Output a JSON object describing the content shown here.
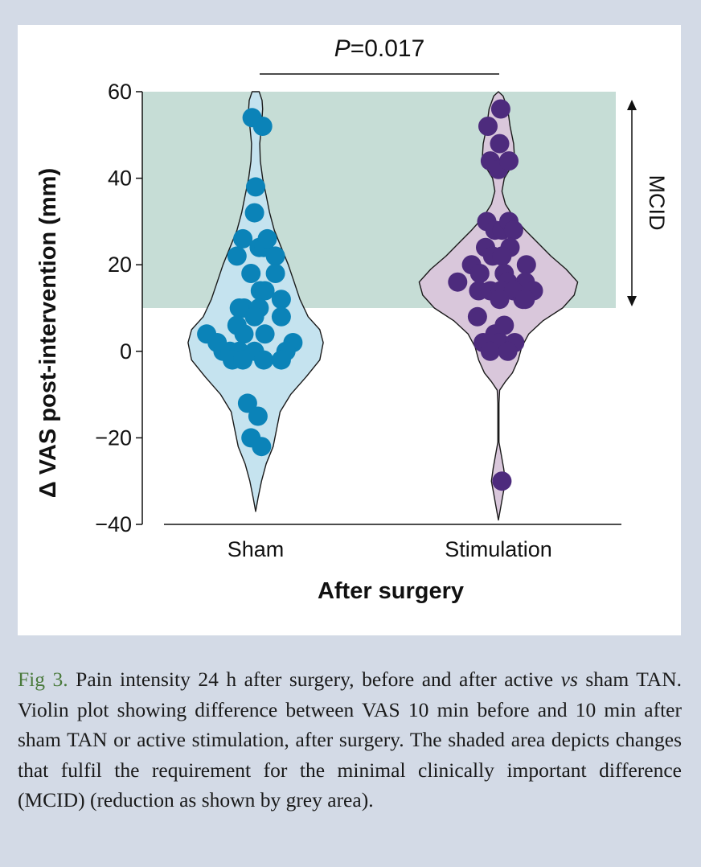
{
  "chart_data": {
    "type": "violin",
    "significance": {
      "label_italic": "P",
      "label_rest": "=0.017"
    },
    "ylabel": "Δ VAS post-intervention (mm)",
    "xlabel": "After surgery",
    "ylim": [
      -40,
      60
    ],
    "yticks": [
      60,
      40,
      20,
      0,
      -20,
      -40
    ],
    "ytick_labels": [
      "60",
      "40",
      "20",
      "0",
      "−20",
      "−40"
    ],
    "categories": [
      "Sham",
      "Stimulation"
    ],
    "mcid": {
      "label": "MCID",
      "range": [
        10,
        60
      ],
      "color": "#c6ddd6"
    },
    "series": [
      {
        "name": "Sham",
        "fill": "#c5e3ef",
        "point_color": "#0b83b8",
        "violin_halfwidth": [
          [
            -37,
            0
          ],
          [
            -34,
            0.2
          ],
          [
            -30,
            0.5
          ],
          [
            -26,
            0.9
          ],
          [
            -22,
            1.5
          ],
          [
            -18,
            1.8
          ],
          [
            -14,
            2.1
          ],
          [
            -10,
            3.0
          ],
          [
            -6,
            4.3
          ],
          [
            -2,
            5.5
          ],
          [
            2,
            5.8
          ],
          [
            5,
            5.5
          ],
          [
            8,
            4.5
          ],
          [
            12,
            3.8
          ],
          [
            16,
            3.3
          ],
          [
            20,
            2.8
          ],
          [
            24,
            2.2
          ],
          [
            28,
            1.6
          ],
          [
            32,
            1.2
          ],
          [
            36,
            0.9
          ],
          [
            40,
            0.6
          ],
          [
            44,
            0.4
          ],
          [
            48,
            0.35
          ],
          [
            52,
            0.5
          ],
          [
            56,
            0.6
          ],
          [
            58,
            0.55
          ],
          [
            60,
            0.3
          ]
        ],
        "points": [
          {
            "dx": -0.3,
            "y": 54
          },
          {
            "dx": 0.6,
            "y": 52
          },
          {
            "dx": 0,
            "y": 38
          },
          {
            "dx": -0.1,
            "y": 32
          },
          {
            "dx": -1.1,
            "y": 26
          },
          {
            "dx": 0.3,
            "y": 24
          },
          {
            "dx": 0.7,
            "y": 24
          },
          {
            "dx": 1.0,
            "y": 26
          },
          {
            "dx": -1.6,
            "y": 22
          },
          {
            "dx": 1.7,
            "y": 22
          },
          {
            "dx": -0.4,
            "y": 18
          },
          {
            "dx": 1.7,
            "y": 18
          },
          {
            "dx": 0.4,
            "y": 14
          },
          {
            "dx": 0.8,
            "y": 14
          },
          {
            "dx": 2.2,
            "y": 12
          },
          {
            "dx": -1.0,
            "y": 10
          },
          {
            "dx": -1.4,
            "y": 10
          },
          {
            "dx": 0.3,
            "y": 10
          },
          {
            "dx": -0.1,
            "y": 8
          },
          {
            "dx": 2.2,
            "y": 8
          },
          {
            "dx": -1.6,
            "y": 6
          },
          {
            "dx": -1.0,
            "y": 4
          },
          {
            "dx": 0.8,
            "y": 4
          },
          {
            "dx": -4.2,
            "y": 4
          },
          {
            "dx": -3.3,
            "y": 2
          },
          {
            "dx": 3.2,
            "y": 2
          },
          {
            "dx": -2.8,
            "y": 0
          },
          {
            "dx": -2.2,
            "y": 0
          },
          {
            "dx": -1.4,
            "y": 0
          },
          {
            "dx": -0.1,
            "y": 0
          },
          {
            "dx": 2.6,
            "y": 0
          },
          {
            "dx": -2.0,
            "y": -2
          },
          {
            "dx": -1.1,
            "y": -2
          },
          {
            "dx": 0.7,
            "y": -2
          },
          {
            "dx": 2.2,
            "y": -2
          },
          {
            "dx": -0.7,
            "y": -12
          },
          {
            "dx": 0.2,
            "y": -15
          },
          {
            "dx": -0.4,
            "y": -20
          },
          {
            "dx": 0.5,
            "y": -22
          }
        ]
      },
      {
        "name": "Stimulation",
        "fill": "#d9c7db",
        "point_color": "#4d2b7d",
        "violin_halfwidth": [
          [
            -39,
            0
          ],
          [
            -36,
            0.2
          ],
          [
            -33,
            0.4
          ],
          [
            -30,
            0.6
          ],
          [
            -27,
            0.45
          ],
          [
            -24,
            0.25
          ],
          [
            -21,
            0.05
          ],
          [
            -16,
            0.05
          ],
          [
            -12,
            0.05
          ],
          [
            -9,
            0.1
          ],
          [
            -7,
            0.6
          ],
          [
            -5,
            1.2
          ],
          [
            -2,
            1.7
          ],
          [
            1,
            2.0
          ],
          [
            4,
            2.6
          ],
          [
            7,
            3.8
          ],
          [
            10,
            5.5
          ],
          [
            13,
            6.5
          ],
          [
            16,
            6.8
          ],
          [
            19,
            5.8
          ],
          [
            22,
            4.5
          ],
          [
            25,
            3.4
          ],
          [
            28,
            2.3
          ],
          [
            31,
            1.3
          ],
          [
            34,
            0.6
          ],
          [
            37,
            0.3
          ],
          [
            40,
            0.5
          ],
          [
            44,
            1.4
          ],
          [
            48,
            1.3
          ],
          [
            52,
            1.0
          ],
          [
            56,
            0.8
          ],
          [
            59,
            0.4
          ],
          [
            60,
            0
          ]
        ],
        "points": [
          {
            "dx": 0.2,
            "y": 56
          },
          {
            "dx": -0.9,
            "y": 52
          },
          {
            "dx": 0.1,
            "y": 48
          },
          {
            "dx": -0.7,
            "y": 44
          },
          {
            "dx": 0,
            "y": 42
          },
          {
            "dx": 0.9,
            "y": 44
          },
          {
            "dx": -1.0,
            "y": 30
          },
          {
            "dx": -0.3,
            "y": 28
          },
          {
            "dx": 0.3,
            "y": 28
          },
          {
            "dx": 0.9,
            "y": 30
          },
          {
            "dx": 1.3,
            "y": 28
          },
          {
            "dx": -1.1,
            "y": 24
          },
          {
            "dx": 1.0,
            "y": 24
          },
          {
            "dx": -2.3,
            "y": 20
          },
          {
            "dx": -0.5,
            "y": 22
          },
          {
            "dx": 0.3,
            "y": 22
          },
          {
            "dx": 2.4,
            "y": 20
          },
          {
            "dx": -1.6,
            "y": 18
          },
          {
            "dx": 0.5,
            "y": 18
          },
          {
            "dx": -3.5,
            "y": 16
          },
          {
            "dx": 0.8,
            "y": 16
          },
          {
            "dx": 2.3,
            "y": 16
          },
          {
            "dx": -1.7,
            "y": 14
          },
          {
            "dx": -0.7,
            "y": 14
          },
          {
            "dx": 0.2,
            "y": 14
          },
          {
            "dx": 1.3,
            "y": 14
          },
          {
            "dx": 3.0,
            "y": 14
          },
          {
            "dx": 0.1,
            "y": 12
          },
          {
            "dx": 2.1,
            "y": 12
          },
          {
            "dx": 2.3,
            "y": 12
          },
          {
            "dx": -1.8,
            "y": 8
          },
          {
            "dx": 0.5,
            "y": 6
          },
          {
            "dx": -0.3,
            "y": 4
          },
          {
            "dx": -1.3,
            "y": 2
          },
          {
            "dx": 0.1,
            "y": 2
          },
          {
            "dx": 1.4,
            "y": 2
          },
          {
            "dx": -0.7,
            "y": 0
          },
          {
            "dx": 0.8,
            "y": 0
          },
          {
            "dx": 0.3,
            "y": -30
          }
        ]
      }
    ]
  },
  "caption": {
    "label": "Fig 3.",
    "text_1": " Pain intensity 24 h after surgery, before and after active ",
    "text_vs": "vs",
    "text_2": " sham TAN. Violin plot showing difference between VAS 10 min before and 10 min after sham TAN or active stimulation, after surgery. The shaded area depicts changes that fulfil the requirement for the minimal clinically important difference (MCID) (reduction as shown by grey area)."
  }
}
